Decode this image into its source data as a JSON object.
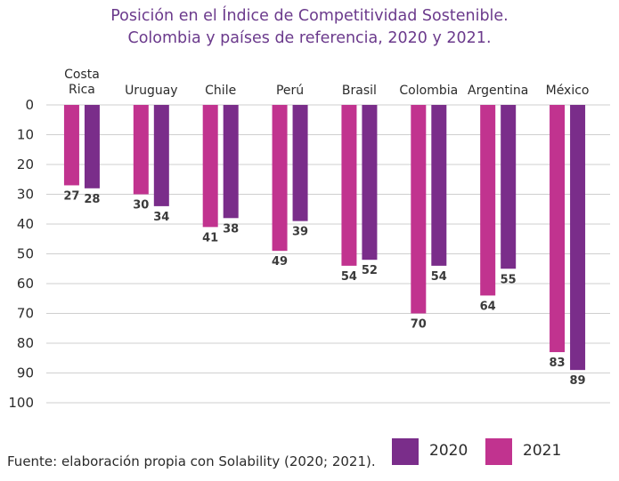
{
  "title_line1": "Posición en el Índice de Competitividad Sostenible.",
  "title_line2": "Colombia y países de referencia, 2020 y 2021.",
  "source": "Fuente: elaboración propia con Solability (2020; 2021).",
  "colors": {
    "series_2021": "#c1338f",
    "series_2020": "#7a2d8a",
    "grid": "#cfcfcf",
    "title": "#6b3a8c"
  },
  "chart_data": {
    "type": "bar",
    "orientation": "vertical-inverted",
    "categories": [
      [
        "Costa",
        "Rica"
      ],
      [
        "Uruguay"
      ],
      [
        "Chile"
      ],
      [
        "Perú"
      ],
      [
        "Brasil"
      ],
      [
        "Colombia"
      ],
      [
        "Argentina"
      ],
      [
        "México"
      ]
    ],
    "series": [
      {
        "name": "2021",
        "color": "#c1338f",
        "values": [
          27,
          30,
          41,
          49,
          54,
          70,
          64,
          83
        ]
      },
      {
        "name": "2020",
        "color": "#7a2d8a",
        "values": [
          28,
          34,
          38,
          39,
          52,
          54,
          55,
          89
        ]
      }
    ],
    "yaxis": {
      "min": 0,
      "max": 100,
      "ticks": [
        0,
        10,
        20,
        30,
        40,
        50,
        60,
        70,
        80,
        90,
        100
      ],
      "inverted": true
    },
    "grid": true,
    "legend": {
      "position": "bottom-right",
      "order": [
        "2020",
        "2021"
      ]
    }
  }
}
